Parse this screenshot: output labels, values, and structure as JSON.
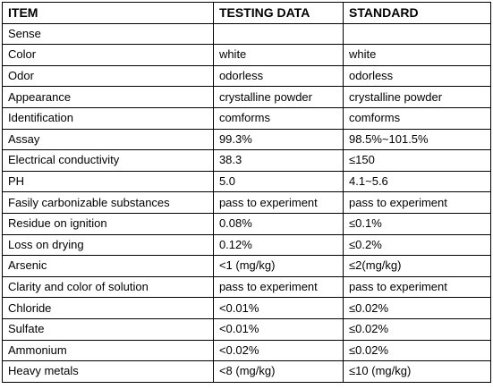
{
  "table": {
    "headers": {
      "item": "ITEM",
      "testing_data": "TESTING DATA",
      "standard": "STANDARD"
    },
    "rows": [
      {
        "item": "Sense",
        "testing_data": "",
        "standard": ""
      },
      {
        "item": "Color",
        "testing_data": "white",
        "standard": "white"
      },
      {
        "item": "Odor",
        "testing_data": "odorless",
        "standard": "odorless"
      },
      {
        "item": "Appearance",
        "testing_data": "crystalline powder",
        "standard": "crystalline powder"
      },
      {
        "item": "Identification",
        "testing_data": "comforms",
        "standard": "comforms"
      },
      {
        "item": "Assay",
        "testing_data": "99.3%",
        "standard": "98.5%~101.5%"
      },
      {
        "item": "Electrical conductivity",
        "testing_data": "38.3",
        "standard": "≤150"
      },
      {
        "item": "PH",
        "testing_data": "5.0",
        "standard": "4.1~5.6"
      },
      {
        "item": "Fasily carbonizable substances",
        "testing_data": "pass to experiment",
        "standard": "pass to experiment"
      },
      {
        "item": "Residue on ignition",
        "testing_data": "0.08%",
        "standard": "≤0.1%"
      },
      {
        "item": "Loss on drying",
        "testing_data": "0.12%",
        "standard": "≤0.2%"
      },
      {
        "item": "Arsenic",
        "testing_data": "<1 (mg/kg)",
        "standard": "≤2(mg/kg)"
      },
      {
        "item": "Clarity and color of solution",
        "testing_data": "pass to experiment",
        "standard": "pass to experiment"
      },
      {
        "item": "Chloride",
        "testing_data": "<0.01%",
        "standard": "≤0.02%"
      },
      {
        "item": "Sulfate",
        "testing_data": "<0.01%",
        "standard": "≤0.02%"
      },
      {
        "item": "Ammonium",
        "testing_data": "<0.02%",
        "standard": "≤0.02%"
      },
      {
        "item": "Heavy metals",
        "testing_data": "<8 (mg/kg)",
        "standard": "≤10 (mg/kg)"
      }
    ]
  }
}
